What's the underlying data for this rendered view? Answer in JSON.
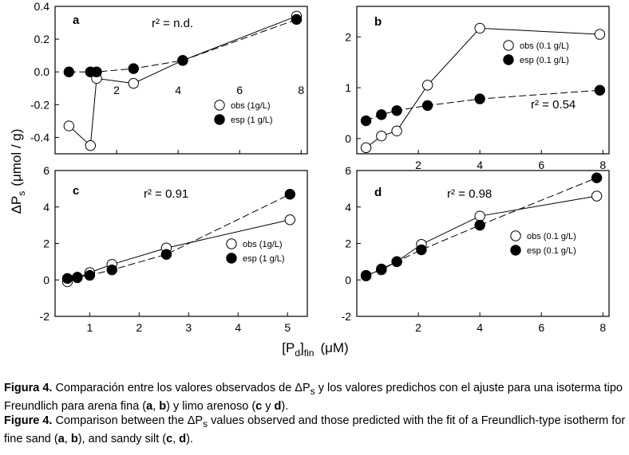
{
  "figure": {
    "y_axis_label": "ΔPs (μmol / g)",
    "x_axis_label": "[Pd]fin (μM)",
    "y_label_parts": {
      "delta": "ΔP",
      "sub": "s",
      "rest": "(μmol / g)"
    },
    "x_label_parts": {
      "open": "[P",
      "sub1": "d",
      "close": "]",
      "sub2": "fin",
      "unit": "(μM)"
    },
    "colors": {
      "axis": "#000000",
      "obs_fill": "#ffffff",
      "esp_fill": "#000000",
      "line": "#000000"
    }
  },
  "chart_data": [
    {
      "id": "a",
      "type": "scatter",
      "panel_label": "a",
      "r2": "r² = n.d.",
      "xlim": [
        0,
        8.2
      ],
      "ylim": [
        -0.5,
        0.4
      ],
      "xticks": [
        "2",
        "4",
        "6",
        "8"
      ],
      "xtick_values": [
        2,
        4,
        6,
        8
      ],
      "yticks": [
        "-0.4",
        "-0.2",
        "0.0",
        "0.2",
        "0.4"
      ],
      "ytick_values": [
        -0.4,
        -0.2,
        0.0,
        0.2,
        0.4
      ],
      "legend_position": "bottom-right",
      "series": [
        {
          "name": "obs (1g/L)",
          "marker": "open",
          "line": "solid",
          "x": [
            0.45,
            1.15,
            1.35,
            2.55,
            4.15,
            7.85
          ],
          "y": [
            -0.33,
            -0.45,
            -0.04,
            -0.07,
            0.07,
            0.34
          ]
        },
        {
          "name": "esp (1 g/L)",
          "marker": "filled",
          "line": "dashed",
          "x": [
            0.45,
            1.15,
            1.35,
            2.55,
            4.15,
            7.85
          ],
          "y": [
            0.0,
            0.0,
            0.0,
            0.02,
            0.07,
            0.32
          ]
        }
      ]
    },
    {
      "id": "b",
      "type": "scatter",
      "panel_label": "b",
      "r2": "r² = 0.54",
      "xlim": [
        0,
        8.2
      ],
      "ylim": [
        -0.3,
        2.6
      ],
      "xticks": [
        "2",
        "4",
        "6",
        "8"
      ],
      "xtick_values": [
        2,
        4,
        6,
        8
      ],
      "yticks": [
        "0",
        "1",
        "2"
      ],
      "ytick_values": [
        0,
        1,
        2
      ],
      "legend_position": "top-right",
      "series": [
        {
          "name": "obs (0.1 g/L)",
          "marker": "open",
          "line": "solid",
          "x": [
            0.3,
            0.8,
            1.3,
            2.3,
            4.0,
            7.9
          ],
          "y": [
            -0.18,
            0.05,
            0.15,
            1.05,
            2.17,
            2.05
          ]
        },
        {
          "name": "esp (0.1 g/L)",
          "marker": "filled",
          "line": "dashed",
          "x": [
            0.3,
            0.8,
            1.3,
            2.3,
            4.0,
            7.9
          ],
          "y": [
            0.35,
            0.47,
            0.55,
            0.65,
            0.78,
            0.95
          ]
        }
      ]
    },
    {
      "id": "c",
      "type": "scatter",
      "panel_label": "c",
      "r2": "r² = 0.91",
      "xlim": [
        0.3,
        5.4
      ],
      "ylim": [
        -2,
        6
      ],
      "xticks": [
        "1",
        "2",
        "3",
        "4",
        "5"
      ],
      "xtick_values": [
        1,
        2,
        3,
        4,
        5
      ],
      "yticks": [
        "-2",
        "0",
        "2",
        "4",
        "6"
      ],
      "ytick_values": [
        -2,
        0,
        2,
        4,
        6
      ],
      "legend_position": "right",
      "series": [
        {
          "name": "obs (1g/L)",
          "marker": "open",
          "line": "solid",
          "x": [
            0.55,
            0.75,
            1.0,
            1.45,
            2.55,
            5.05
          ],
          "y": [
            -0.1,
            0.12,
            0.4,
            0.85,
            1.75,
            3.3
          ]
        },
        {
          "name": "esp (1 g/L)",
          "marker": "filled",
          "line": "dashed",
          "x": [
            0.55,
            0.75,
            1.0,
            1.45,
            2.55,
            5.05
          ],
          "y": [
            0.08,
            0.15,
            0.25,
            0.55,
            1.4,
            4.7
          ]
        }
      ]
    },
    {
      "id": "d",
      "type": "scatter",
      "panel_label": "d",
      "r2": "r² = 0.98",
      "xlim": [
        0,
        8.2
      ],
      "ylim": [
        -2,
        6
      ],
      "xticks": [
        "2",
        "4",
        "6",
        "8"
      ],
      "xtick_values": [
        2,
        4,
        6,
        8
      ],
      "yticks": [
        "-2",
        "0",
        "2",
        "4",
        "6"
      ],
      "ytick_values": [
        -2,
        0,
        2,
        4,
        6
      ],
      "legend_position": "right",
      "series": [
        {
          "name": "obs (0.1 g/L)",
          "marker": "open",
          "line": "solid",
          "x": [
            0.3,
            0.8,
            1.3,
            2.1,
            4.0,
            7.8
          ],
          "y": [
            0.25,
            0.55,
            1.0,
            1.95,
            3.5,
            4.6
          ]
        },
        {
          "name": "esp (0.1 g/L)",
          "marker": "filled",
          "line": "dashed",
          "x": [
            0.3,
            0.8,
            1.3,
            2.1,
            4.0,
            7.8
          ],
          "y": [
            0.22,
            0.6,
            1.0,
            1.65,
            3.0,
            5.6
          ]
        }
      ]
    }
  ],
  "caption": {
    "es_label": "Figura 4.",
    "es_text_1": "Comparación entre los valores observados de ",
    "es_delta": "ΔP",
    "es_sub": "s",
    "es_text_2": " y los valores predichos con el ajuste para una isoterma tipo Freundlich para arena fina (",
    "es_a": "a",
    "es_comma": ", ",
    "es_b": "b",
    "es_text_3": ") y limo arenoso (",
    "es_c": "c",
    "es_y": " y ",
    "es_d": "d",
    "es_end": ").",
    "en_label": "Figure 4.",
    "en_text_1": "Comparison between the ",
    "en_delta": "ΔP",
    "en_sub": "s",
    "en_text_2": " values observed and those predicted with the fit of a Freundlich-type isotherm for fine sand (",
    "en_a": "a",
    "en_comma": ", ",
    "en_b": "b",
    "en_text_3": "), and sandy silt (",
    "en_c": "c",
    "en_comma2": ", ",
    "en_d": "d",
    "en_end": ")."
  }
}
